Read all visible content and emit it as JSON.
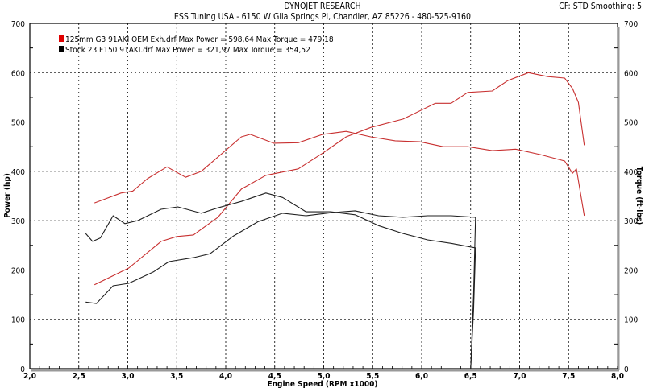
{
  "header": {
    "brand": "DYNOJET RESEARCH",
    "shop": "ESS Tuning USA - 6150 W Gila Springs Pl, Chandler, AZ 85226 - 480-525-9160",
    "settings": "CF: STD  Smoothing: 5"
  },
  "chart_data": {
    "type": "line",
    "xlabel": "Engine Speed (RPM x1000)",
    "ylabel": "Power (hp)",
    "y2label": "Torque (ft-lbs)",
    "xlim": [
      2.0,
      8.0
    ],
    "ylim": [
      0,
      700
    ],
    "y2lim": [
      0,
      700
    ],
    "xticks": [
      "2,0",
      "2,5",
      "3,0",
      "3,5",
      "4,0",
      "4,5",
      "5,0",
      "5,5",
      "6,0",
      "6,5",
      "7,0",
      "7,5",
      "8,0"
    ],
    "yticks": [
      "0",
      "100",
      "200",
      "300",
      "400",
      "500",
      "600",
      "700"
    ],
    "grid": true,
    "legend_position": "top-left",
    "legend": [
      {
        "text": "125mm G3 91AKI OEM Exh.drf Max Power = 598,64     Max Torque = 479,18",
        "color": "#e00000"
      },
      {
        "text": "Stock 23 F150 91AKI.drf Max Power = 321,97     Max Torque = 354,52",
        "color": "#000000"
      }
    ],
    "series": [
      {
        "run": "125mm G3 91AKI OEM Exh.drf",
        "measure": "power",
        "color": "#c83030",
        "x": [
          2.66,
          3.01,
          3.34,
          3.5,
          3.67,
          3.92,
          4.16,
          4.41,
          4.74,
          4.99,
          5.23,
          5.48,
          5.81,
          6.14,
          6.3,
          6.47,
          6.72,
          6.88,
          7.09,
          7.29,
          7.46,
          7.54,
          7.6,
          7.66
        ],
        "y": [
          170,
          204,
          258,
          268,
          271,
          307,
          364,
          392,
          405,
          437,
          470,
          489,
          506,
          538,
          538,
          560,
          563,
          584,
          600,
          592,
          589,
          568,
          540,
          453
        ]
      },
      {
        "run": "125mm G3 91AKI OEM Exh.drf",
        "measure": "torque",
        "color": "#c83030",
        "x": [
          2.66,
          2.93,
          3.05,
          3.2,
          3.4,
          3.59,
          3.75,
          3.92,
          4.16,
          4.25,
          4.49,
          4.74,
          4.99,
          5.23,
          5.48,
          5.73,
          5.98,
          6.22,
          6.47,
          6.72,
          6.96,
          7.21,
          7.46,
          7.54,
          7.58,
          7.66
        ],
        "y": [
          336,
          356,
          360,
          385,
          409,
          388,
          400,
          429,
          470,
          475,
          457,
          458,
          475,
          481,
          470,
          462,
          460,
          450,
          450,
          442,
          445,
          434,
          421,
          396,
          405,
          310
        ]
      },
      {
        "run": "Stock 23 F150 91AKI.drf",
        "measure": "power",
        "color": "#202020",
        "x": [
          2.57,
          2.68,
          2.85,
          3.01,
          3.26,
          3.42,
          3.67,
          3.84,
          4.08,
          4.33,
          4.58,
          4.82,
          5.07,
          5.32,
          5.56,
          5.81,
          6.06,
          6.3,
          6.55,
          6.53,
          6.5
        ],
        "y": [
          135,
          132,
          168,
          173,
          196,
          217,
          225,
          233,
          269,
          298,
          315,
          310,
          316,
          320,
          310,
          307,
          310,
          310,
          307,
          150,
          0
        ]
      },
      {
        "run": "Stock 23 F150 91AKI.drf",
        "measure": "torque",
        "color": "#202020",
        "x": [
          2.57,
          2.64,
          2.72,
          2.85,
          2.97,
          3.1,
          3.34,
          3.51,
          3.75,
          3.92,
          4.16,
          4.41,
          4.58,
          4.82,
          5.07,
          5.32,
          5.56,
          5.81,
          6.06,
          6.3,
          6.55,
          6.53,
          6.5
        ],
        "y": [
          274,
          258,
          265,
          310,
          294,
          300,
          323,
          328,
          315,
          326,
          339,
          356,
          347,
          318,
          318,
          312,
          290,
          274,
          261,
          254,
          245,
          120,
          0
        ]
      }
    ]
  }
}
